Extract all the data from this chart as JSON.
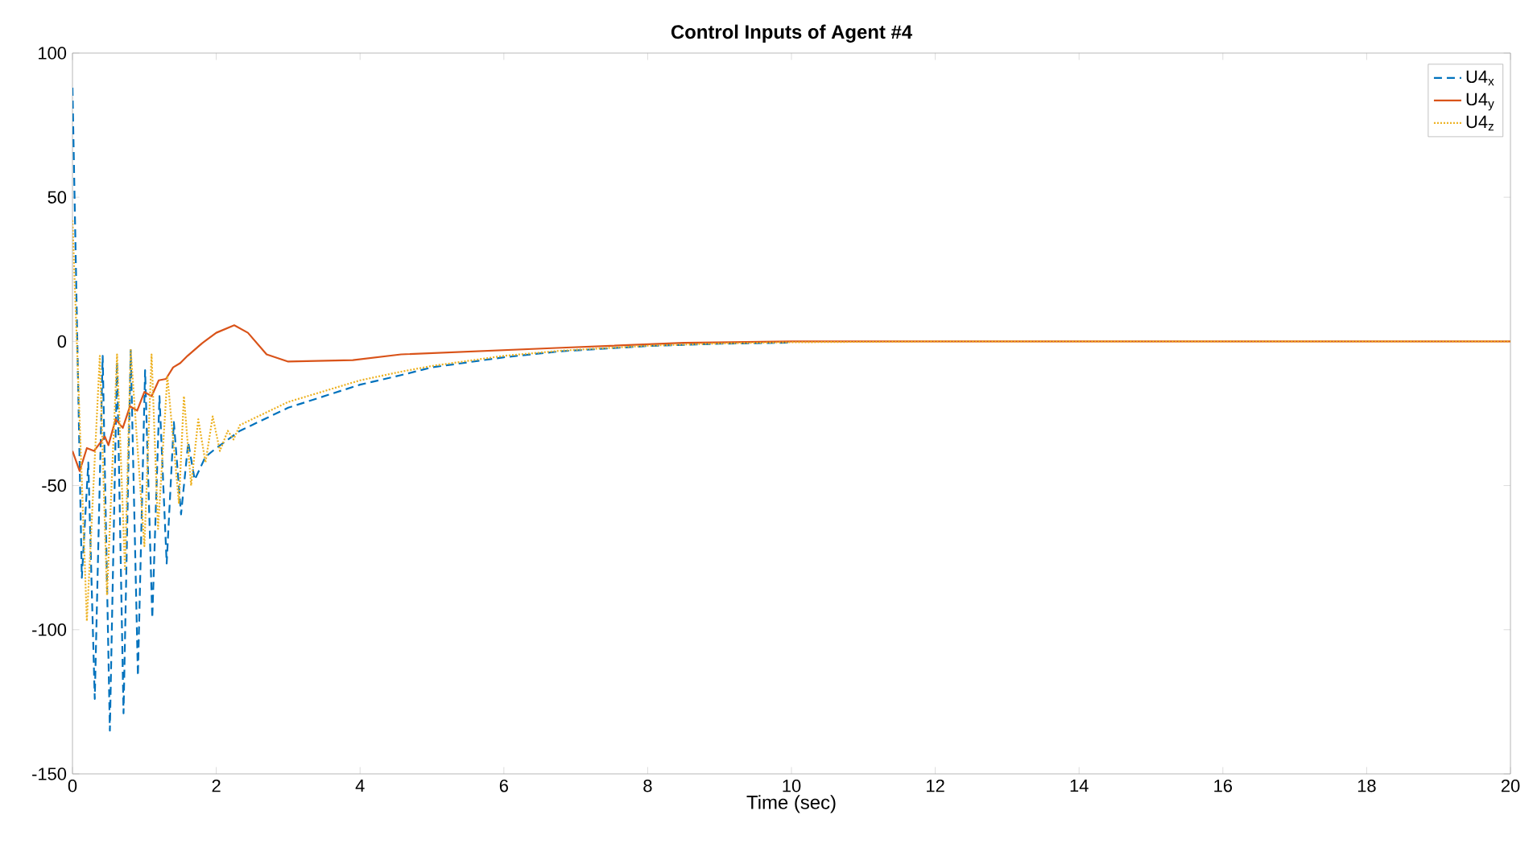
{
  "chart_data": {
    "type": "line",
    "title": "Control Inputs of Agent #4",
    "xlabel": "Time (sec)",
    "xlim": [
      0,
      20
    ],
    "ylim": [
      -150,
      100
    ],
    "xticks": [
      0,
      2,
      4,
      6,
      8,
      10,
      12,
      14,
      16,
      18,
      20
    ],
    "yticks": [
      -150,
      -100,
      -50,
      0,
      50,
      100
    ],
    "grid": false,
    "legend": "top right",
    "marker": "none",
    "series": [
      {
        "name": "U4$_{x}$",
        "color": "#0072bd",
        "line_style": "dashed",
        "x": [
          0,
          0.13,
          0.22,
          0.31,
          0.42,
          0.52,
          0.62,
          0.71,
          0.81,
          0.91,
          1.01,
          1.11,
          1.21,
          1.31,
          1.41,
          1.51,
          1.61,
          1.7,
          1.85,
          2.0,
          2.33,
          3,
          4,
          4.57,
          5,
          6,
          6.8,
          8,
          9,
          10
        ],
        "values": [
          88,
          -82,
          -42,
          -124,
          -5,
          -135,
          -7,
          -129,
          -3,
          -116,
          -10,
          -96,
          -19,
          -77,
          -28,
          -60,
          -35,
          -48,
          -40,
          -37,
          -31,
          -23,
          -15,
          -11.7,
          -9,
          -5.5,
          -3.4,
          -1.6,
          -0.8,
          -0.4
        ]
      },
      {
        "name": "U4$_{y}$",
        "color": "#d95319",
        "line_style": "solid",
        "x": [
          0,
          0.1,
          0.2,
          0.3,
          0.45,
          0.5,
          0.6,
          0.7,
          0.8,
          0.9,
          1.0,
          1.1,
          1.2,
          1.3,
          1.4,
          1.5,
          1.6,
          1.8,
          2.0,
          2.25,
          2.44,
          2.7,
          3.0,
          3.9,
          4.57,
          6.8,
          8.5,
          10,
          12,
          14,
          16,
          18,
          20
        ],
        "values": [
          -38,
          -45,
          -37,
          -38,
          -33,
          -36,
          -27,
          -30,
          -22.5,
          -24,
          -17.5,
          -19,
          -13.5,
          -13,
          -9,
          -7.5,
          -5,
          -0.7,
          3,
          5.6,
          3,
          -4.5,
          -7,
          -6.5,
          -4.5,
          -2.2,
          -0.5,
          0,
          0,
          0,
          0,
          0,
          0
        ]
      },
      {
        "name": "U4$_{z}$",
        "color": "#edb120",
        "line_style": "dotted",
        "x": [
          0,
          0.2,
          0.38,
          0.48,
          0.62,
          0.73,
          0.81,
          1.0,
          1.1,
          1.19,
          1.32,
          1.48,
          1.55,
          1.65,
          1.75,
          1.85,
          1.95,
          2.05,
          2.16,
          2.24,
          2.33,
          3,
          4,
          4.57,
          5,
          6,
          6.8,
          8,
          9,
          10,
          12,
          14,
          16,
          18,
          20
        ],
        "values": [
          42,
          -97,
          -5,
          -88,
          -4.5,
          -79,
          -3,
          -71,
          -4.5,
          -65,
          -12,
          -56,
          -19,
          -50,
          -27,
          -42,
          -26,
          -38,
          -31,
          -34,
          -29,
          -21,
          -13.5,
          -10.5,
          -8.5,
          -5,
          -3.2,
          -1.5,
          -0.7,
          -0.3,
          0,
          0,
          0,
          0,
          0
        ]
      }
    ]
  }
}
